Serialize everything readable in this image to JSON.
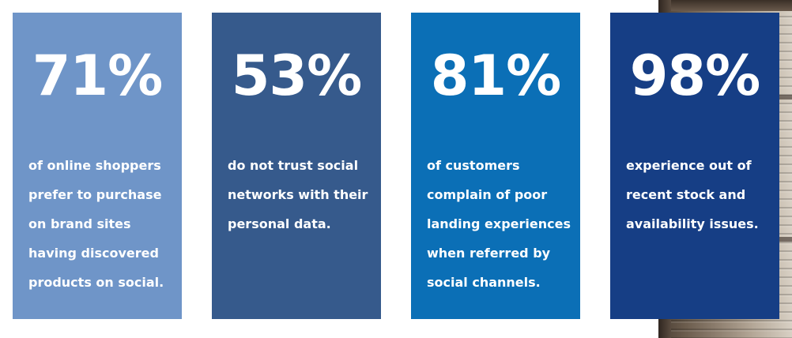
{
  "cards": [
    {
      "stat": "71%",
      "lines": [
        "of online shoppers",
        "prefer to purchase",
        "on brand sites",
        "having discovered",
        "products on social."
      ],
      "color": "#6f95c8"
    },
    {
      "stat": "53%",
      "lines": [
        "do not trust social",
        "networks with their",
        "personal data."
      ],
      "color": "#365a8c"
    },
    {
      "stat": "81%",
      "lines": [
        "of customers",
        "complain of poor",
        "landing experiences",
        "when referred by",
        "social channels."
      ],
      "color": "#0b6fb6"
    },
    {
      "stat": "98%",
      "lines": [
        "experience out of",
        "recent stock and",
        "availability issues."
      ],
      "color": "#163e85"
    }
  ],
  "background_image": "wooden-shutters-photo"
}
